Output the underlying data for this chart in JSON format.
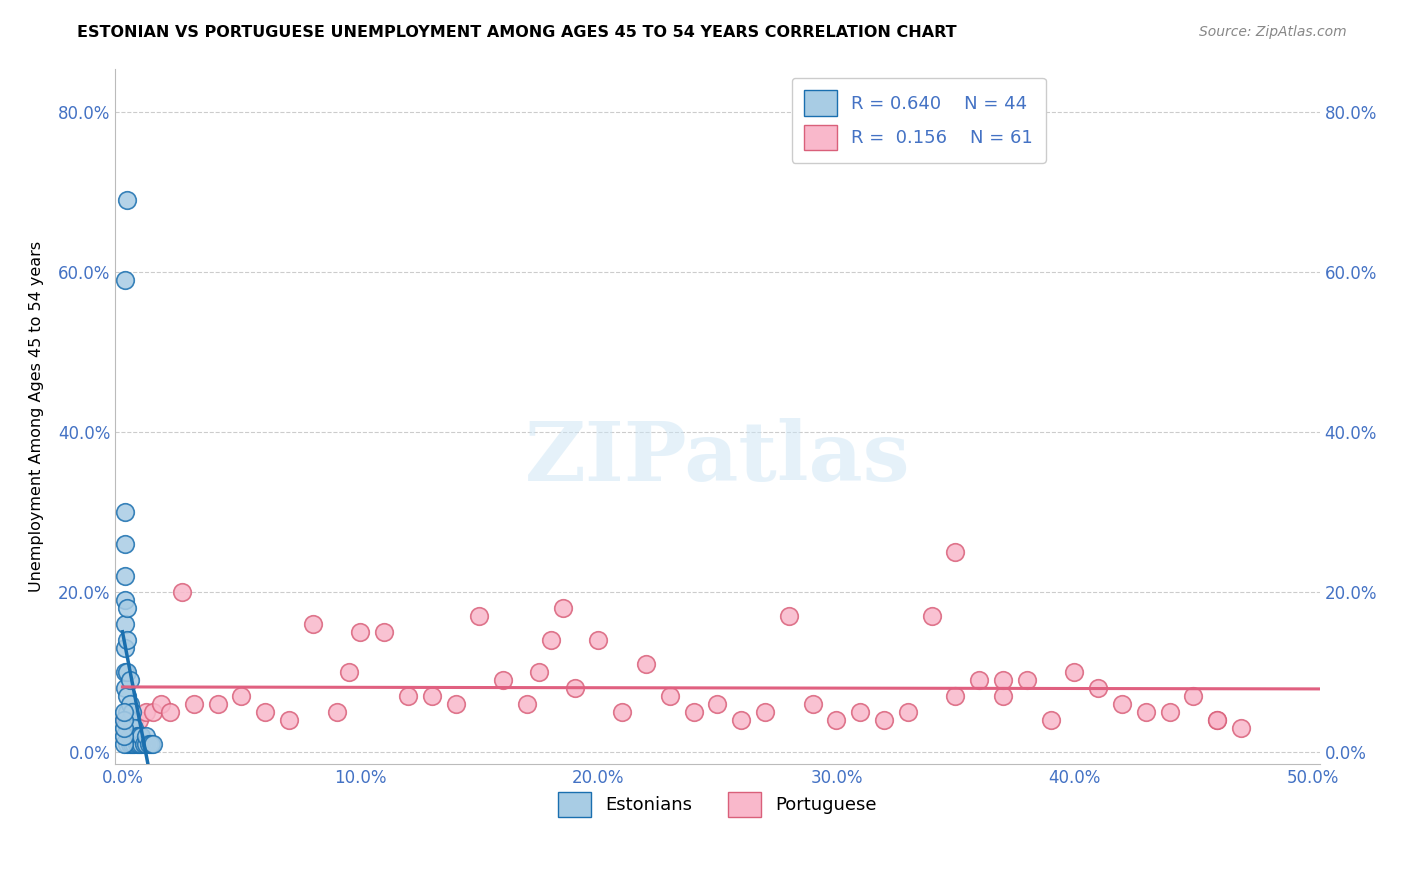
{
  "title": "ESTONIAN VS PORTUGUESE UNEMPLOYMENT AMONG AGES 45 TO 54 YEARS CORRELATION CHART",
  "source": "Source: ZipAtlas.com",
  "ylabel": "Unemployment Among Ages 45 to 54 years",
  "xlim": [
    -0.003,
    0.503
  ],
  "ylim": [
    -0.015,
    0.855
  ],
  "xtick_vals": [
    0.0,
    0.1,
    0.2,
    0.3,
    0.4,
    0.5
  ],
  "ytick_vals": [
    0.0,
    0.2,
    0.4,
    0.6,
    0.8
  ],
  "estonian_color_face": "#a8cce4",
  "estonian_color_edge": "#1a6faf",
  "portuguese_color_face": "#f9b8cb",
  "portuguese_color_edge": "#d9607a",
  "estonian_line_color": "#1a6faf",
  "portuguese_line_color": "#e06080",
  "estonian_dash_color": "#7ab3d9",
  "estonian_R": 0.64,
  "estonian_N": 44,
  "portuguese_R": 0.156,
  "portuguese_N": 61,
  "watermark_text": "ZIPatlas",
  "est_x": [
    0.001,
    0.001,
    0.001,
    0.001,
    0.001,
    0.001,
    0.001,
    0.001,
    0.002,
    0.002,
    0.002,
    0.002,
    0.002,
    0.002,
    0.002,
    0.003,
    0.003,
    0.003,
    0.003,
    0.003,
    0.004,
    0.004,
    0.004,
    0.005,
    0.005,
    0.006,
    0.006,
    0.007,
    0.007,
    0.008,
    0.008,
    0.009,
    0.01,
    0.01,
    0.011,
    0.012,
    0.013,
    0.0005,
    0.0005,
    0.0005,
    0.0005,
    0.0005,
    0.001,
    0.002
  ],
  "est_y": [
    0.08,
    0.1,
    0.13,
    0.16,
    0.19,
    0.22,
    0.26,
    0.3,
    0.01,
    0.03,
    0.05,
    0.07,
    0.1,
    0.14,
    0.18,
    0.01,
    0.02,
    0.04,
    0.06,
    0.09,
    0.01,
    0.03,
    0.05,
    0.01,
    0.03,
    0.01,
    0.02,
    0.01,
    0.02,
    0.01,
    0.02,
    0.01,
    0.01,
    0.02,
    0.01,
    0.01,
    0.01,
    0.01,
    0.02,
    0.03,
    0.04,
    0.05,
    0.59,
    0.69
  ],
  "por_x": [
    0.001,
    0.002,
    0.003,
    0.005,
    0.007,
    0.01,
    0.013,
    0.016,
    0.02,
    0.025,
    0.03,
    0.04,
    0.05,
    0.06,
    0.07,
    0.08,
    0.09,
    0.1,
    0.11,
    0.12,
    0.13,
    0.14,
    0.15,
    0.16,
    0.17,
    0.175,
    0.18,
    0.19,
    0.2,
    0.21,
    0.22,
    0.23,
    0.24,
    0.25,
    0.26,
    0.27,
    0.28,
    0.29,
    0.3,
    0.31,
    0.32,
    0.33,
    0.34,
    0.35,
    0.36,
    0.37,
    0.38,
    0.39,
    0.4,
    0.41,
    0.42,
    0.43,
    0.44,
    0.45,
    0.46,
    0.47,
    0.095,
    0.185,
    0.35,
    0.37,
    0.46
  ],
  "por_y": [
    0.04,
    0.04,
    0.04,
    0.04,
    0.04,
    0.05,
    0.05,
    0.06,
    0.05,
    0.2,
    0.06,
    0.06,
    0.07,
    0.05,
    0.04,
    0.16,
    0.05,
    0.15,
    0.15,
    0.07,
    0.07,
    0.06,
    0.17,
    0.09,
    0.06,
    0.1,
    0.14,
    0.08,
    0.14,
    0.05,
    0.11,
    0.07,
    0.05,
    0.06,
    0.04,
    0.05,
    0.17,
    0.06,
    0.04,
    0.05,
    0.04,
    0.05,
    0.17,
    0.07,
    0.09,
    0.07,
    0.09,
    0.04,
    0.1,
    0.08,
    0.06,
    0.05,
    0.05,
    0.07,
    0.04,
    0.03,
    0.1,
    0.18,
    0.25,
    0.09,
    0.04
  ]
}
